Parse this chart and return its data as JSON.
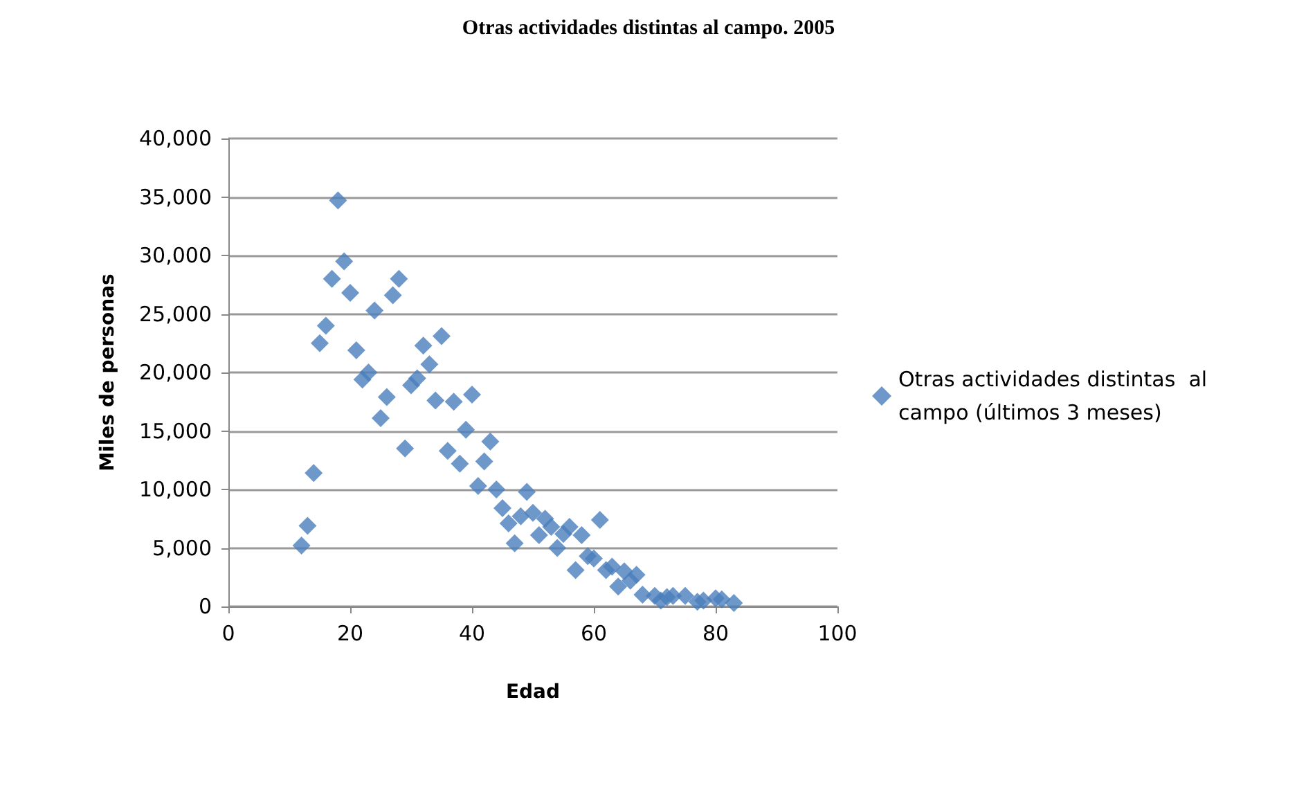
{
  "chart_data": {
    "type": "scatter",
    "title": "Otras actividades distintas al campo. 2005",
    "xlabel": "Edad",
    "ylabel": "Miles de personas",
    "x": [
      12,
      13,
      14,
      15,
      16,
      17,
      18,
      19,
      20,
      21,
      22,
      23,
      24,
      25,
      26,
      27,
      28,
      29,
      30,
      31,
      32,
      33,
      34,
      35,
      36,
      37,
      38,
      39,
      40,
      41,
      42,
      43,
      44,
      45,
      46,
      47,
      48,
      49,
      50,
      51,
      52,
      53,
      54,
      55,
      56,
      57,
      58,
      59,
      60,
      61,
      62,
      63,
      64,
      65,
      66,
      67,
      68,
      70,
      71,
      72,
      73,
      75,
      77,
      78,
      80,
      81,
      83
    ],
    "series": [
      {
        "name": "Otras actividades distintas  al campo (últimos 3 meses)",
        "color": "#4a7ebb",
        "values": [
          5200,
          6900,
          11400,
          22500,
          24000,
          28000,
          34700,
          29500,
          26800,
          21900,
          19400,
          20000,
          25300,
          16100,
          17900,
          26600,
          28000,
          13500,
          18900,
          19500,
          22300,
          20700,
          17600,
          23100,
          13300,
          17500,
          12200,
          15100,
          18100,
          10300,
          12400,
          14100,
          10000,
          8400,
          7100,
          5400,
          7700,
          9800,
          8000,
          6100,
          7500,
          6800,
          5000,
          6200,
          6800,
          3100,
          6100,
          4300,
          4100,
          7400,
          3100,
          3400,
          1700,
          3000,
          2200,
          2700,
          1000,
          900,
          500,
          800,
          900,
          900,
          400,
          500,
          700,
          600,
          300
        ]
      }
    ],
    "xlim": [
      0,
      100
    ],
    "xticks": [
      0,
      20,
      40,
      60,
      80,
      100
    ],
    "ylim": [
      0,
      40000
    ],
    "yticks": [
      {
        "value": 0,
        "label": "0"
      },
      {
        "value": 5000,
        "label": "5,000"
      },
      {
        "value": 10000,
        "label": "10,000"
      },
      {
        "value": 15000,
        "label": "15,000"
      },
      {
        "value": 20000,
        "label": "20,000"
      },
      {
        "value": 25000,
        "label": "25,000"
      },
      {
        "value": 30000,
        "label": "30,000"
      },
      {
        "value": 35000,
        "label": "35,000"
      },
      {
        "value": 40000,
        "label": "40,000"
      }
    ],
    "grid": "y",
    "legend": "right",
    "marker": "diamond"
  }
}
